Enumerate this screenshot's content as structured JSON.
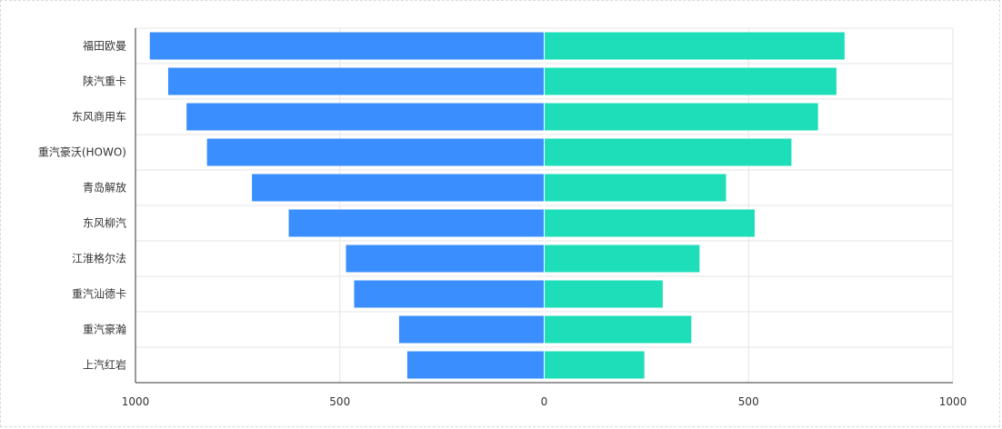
{
  "chart_data": {
    "type": "bar",
    "orientation": "horizontal-diverging",
    "categories": [
      "福田欧曼",
      "陕汽重卡",
      "东风商用车",
      "重汽豪沃(HOWO)",
      "青岛解放",
      "东风柳汽",
      "江淮格尔法",
      "重汽汕德卡",
      "重汽豪瀚",
      "上汽红岩"
    ],
    "series": [
      {
        "values": [
          965,
          920,
          875,
          825,
          715,
          625,
          485,
          465,
          355,
          335
        ],
        "direction": "left"
      },
      {
        "values": [
          735,
          715,
          670,
          605,
          445,
          515,
          380,
          290,
          360,
          245
        ],
        "direction": "right"
      }
    ],
    "x_ticks": [
      "1000",
      "500",
      "0",
      "500",
      "1000"
    ],
    "xlim": [
      -1000,
      1000
    ],
    "grid": true,
    "legend": "none",
    "colors": {
      "left": "#3a8efd",
      "right": "#1ddeb8",
      "grid": "#e6e6e6",
      "axis": "#333333"
    }
  }
}
